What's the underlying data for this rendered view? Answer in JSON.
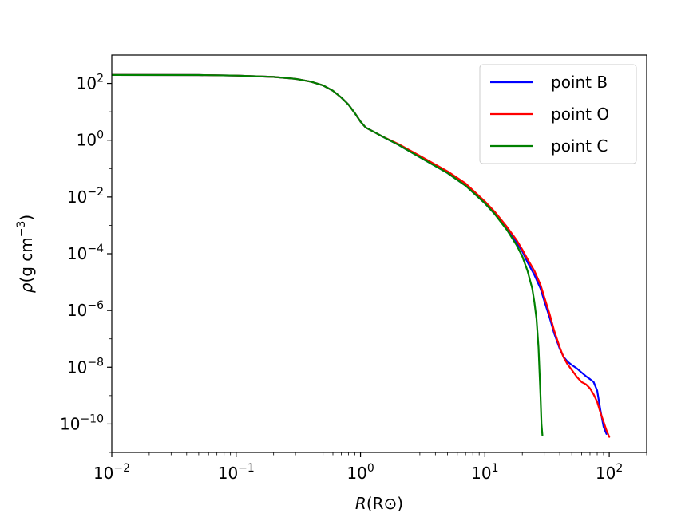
{
  "chart_data": {
    "type": "line",
    "xscale": "log",
    "yscale": "log",
    "xlim": [
      0.01,
      200
    ],
    "ylim": [
      1e-11,
      1000
    ],
    "xlabel": {
      "symbol": "R",
      "unit": "(R⊙)"
    },
    "ylabel": {
      "symbol": "ρ",
      "unit_prefix": "(g cm",
      "unit_exp": "−3",
      "unit_suffix": ")"
    },
    "x_ticks": [
      {
        "value": 0.01,
        "base": "10",
        "exp": "−2"
      },
      {
        "value": 0.1,
        "base": "10",
        "exp": "−1"
      },
      {
        "value": 1,
        "base": "10",
        "exp": "0"
      },
      {
        "value": 10,
        "base": "10",
        "exp": "1"
      },
      {
        "value": 100,
        "base": "10",
        "exp": "2"
      }
    ],
    "x_minor_ticks": [
      200
    ],
    "y_ticks": [
      {
        "value": 1e-10,
        "base": "10",
        "exp": "−10"
      },
      {
        "value": 1e-08,
        "base": "10",
        "exp": "−8"
      },
      {
        "value": 1e-06,
        "base": "10",
        "exp": "−6"
      },
      {
        "value": 0.0001,
        "base": "10",
        "exp": "−4"
      },
      {
        "value": 0.01,
        "base": "10",
        "exp": "−2"
      },
      {
        "value": 1,
        "base": "10",
        "exp": "0"
      },
      {
        "value": 100,
        "base": "10",
        "exp": "2"
      }
    ],
    "legend": {
      "position": "top-right"
    },
    "series": [
      {
        "name": "point B",
        "color": "#0000ff",
        "x": [
          0.01,
          0.05,
          0.1,
          0.2,
          0.3,
          0.4,
          0.5,
          0.6,
          0.7,
          0.8,
          0.9,
          1.0,
          1.1,
          1.3,
          1.5,
          2,
          3,
          5,
          7,
          10,
          12,
          15,
          18,
          20,
          22,
          25,
          28,
          30,
          33,
          36,
          40,
          43,
          46,
          50,
          55,
          60,
          65,
          70,
          75,
          80,
          85,
          90,
          95
        ],
        "y": [
          200,
          198,
          190,
          170,
          145,
          115,
          85,
          55,
          32,
          18,
          9,
          4.5,
          2.8,
          1.9,
          1.35,
          0.7,
          0.25,
          0.07,
          0.025,
          0.006,
          0.0025,
          0.0008,
          0.00025,
          0.00012,
          5e-05,
          1.8e-05,
          6e-06,
          2.2e-06,
          6e-07,
          1.6e-07,
          4.5e-08,
          2.3e-08,
          1.6e-08,
          1.2e-08,
          9e-09,
          6.5e-09,
          4.8e-09,
          3.8e-09,
          3e-09,
          1.5e-09,
          3e-10,
          8e-11,
          4.5e-11
        ]
      },
      {
        "name": "point O",
        "color": "#ff0000",
        "x": [
          0.01,
          0.05,
          0.1,
          0.2,
          0.3,
          0.4,
          0.5,
          0.6,
          0.7,
          0.8,
          0.9,
          1.0,
          1.1,
          1.3,
          1.5,
          2,
          3,
          5,
          7,
          10,
          12,
          15,
          18,
          20,
          22,
          25,
          28,
          30,
          33,
          36,
          40,
          43,
          46,
          50,
          55,
          60,
          65,
          70,
          75,
          80,
          85,
          90,
          95,
          100
        ],
        "y": [
          200,
          198,
          190,
          170,
          145,
          115,
          85,
          55,
          32,
          18,
          9,
          4.5,
          2.8,
          1.9,
          1.35,
          0.75,
          0.28,
          0.08,
          0.03,
          0.007,
          0.003,
          0.0009,
          0.0003,
          0.00014,
          6.5e-05,
          2.5e-05,
          8e-06,
          3e-06,
          8e-07,
          2e-07,
          5e-08,
          2.2e-08,
          1.3e-08,
          8e-09,
          4.5e-09,
          3e-09,
          2.5e-09,
          1.8e-09,
          1.1e-09,
          6e-10,
          2.5e-10,
          1.2e-10,
          6e-11,
          3.5e-11
        ]
      },
      {
        "name": "point C",
        "color": "#008000",
        "x": [
          0.01,
          0.05,
          0.1,
          0.2,
          0.3,
          0.4,
          0.5,
          0.6,
          0.7,
          0.8,
          0.9,
          1.0,
          1.1,
          1.3,
          1.5,
          2,
          3,
          5,
          7,
          10,
          12,
          15,
          18,
          20,
          22,
          24,
          25,
          26,
          27,
          28,
          28.5,
          29
        ],
        "y": [
          200,
          198,
          190,
          170,
          145,
          115,
          85,
          55,
          32,
          18,
          9,
          4.5,
          2.8,
          1.9,
          1.35,
          0.7,
          0.25,
          0.07,
          0.025,
          0.006,
          0.0025,
          0.0007,
          0.0002,
          8e-05,
          2.5e-05,
          6e-06,
          2e-06,
          5e-07,
          5e-08,
          1e-09,
          1e-10,
          4e-11
        ]
      }
    ]
  }
}
